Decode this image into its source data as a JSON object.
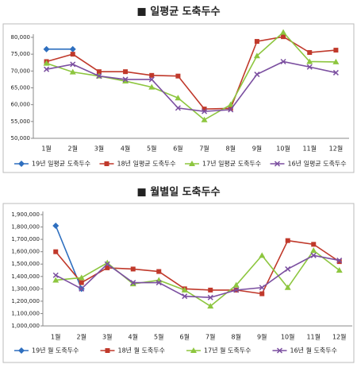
{
  "chart_data": [
    {
      "type": "line",
      "title": "■ 일평균 도축두수",
      "categories": [
        "1월",
        "2월",
        "3월",
        "4월",
        "5월",
        "6월",
        "7월",
        "8월",
        "9월",
        "10월",
        "11월",
        "12월"
      ],
      "ylim": [
        50000,
        80000
      ],
      "yticks": [
        {
          "value": 50000,
          "label": "50,000"
        },
        {
          "value": 55000,
          "label": "55,000"
        },
        {
          "value": 60000,
          "label": "60,000"
        },
        {
          "value": 65000,
          "label": "65,000"
        },
        {
          "value": 70000,
          "label": "70,000"
        },
        {
          "value": 75000,
          "label": "75,000"
        },
        {
          "value": 80000,
          "label": "80,000"
        }
      ],
      "grid": false,
      "legend": "bottom",
      "series": [
        {
          "name": "19년 일평균 도축두수",
          "color": "#2e6fbf",
          "marker": "diamond",
          "values": [
            76500,
            76500,
            null,
            null,
            null,
            null,
            null,
            null,
            null,
            null,
            null,
            null
          ]
        },
        {
          "name": "18년 일평균 도축두수",
          "color": "#c0392b",
          "marker": "square",
          "values": [
            72800,
            75000,
            69800,
            69800,
            68700,
            68500,
            58700,
            58900,
            78800,
            80200,
            75500,
            76200
          ]
        },
        {
          "name": "17년 일평균 도축두수",
          "color": "#8dc63f",
          "marker": "triangle",
          "values": [
            72300,
            69700,
            68500,
            67000,
            65200,
            62000,
            55500,
            60000,
            74500,
            81500,
            72800,
            72700
          ]
        },
        {
          "name": "16년 일평균 도축두수",
          "color": "#7b4fa0",
          "marker": "cross",
          "values": [
            70500,
            72000,
            68500,
            67500,
            67500,
            59000,
            58000,
            58500,
            69000,
            72800,
            71200,
            69500
          ]
        }
      ]
    },
    {
      "type": "line",
      "title": "■ 월별일 도축두수",
      "categories": [
        "1월",
        "2월",
        "3월",
        "4월",
        "5월",
        "6월",
        "7월",
        "8월",
        "9월",
        "10월",
        "11월",
        "12월"
      ],
      "ylim": [
        1000000,
        1900000
      ],
      "yticks": [
        {
          "value": 1000000,
          "label": "1,000,000"
        },
        {
          "value": 1100000,
          "label": "1,100,000"
        },
        {
          "value": 1200000,
          "label": "1,200,000"
        },
        {
          "value": 1300000,
          "label": "1,300,000"
        },
        {
          "value": 1400000,
          "label": "1,400,000"
        },
        {
          "value": 1500000,
          "label": "1,500,000"
        },
        {
          "value": 1600000,
          "label": "1,600,000"
        },
        {
          "value": 1700000,
          "label": "1,700,000"
        },
        {
          "value": 1800000,
          "label": "1,800,000"
        },
        {
          "value": 1900000,
          "label": "1,900,000"
        }
      ],
      "grid": false,
      "legend": "bottom",
      "series": [
        {
          "name": "19년 월 도축두수",
          "color": "#2e6fbf",
          "marker": "diamond",
          "values": [
            1810000,
            1300000,
            null,
            null,
            null,
            null,
            null,
            null,
            null,
            null,
            null,
            null
          ]
        },
        {
          "name": "18년 월 도축두수",
          "color": "#c0392b",
          "marker": "square",
          "values": [
            1600000,
            1350000,
            1470000,
            1460000,
            1440000,
            1300000,
            1290000,
            1290000,
            1260000,
            1690000,
            1660000,
            1520000
          ]
        },
        {
          "name": "17년 월 도축두수",
          "color": "#8dc63f",
          "marker": "triangle",
          "values": [
            1370000,
            1390000,
            1510000,
            1340000,
            1370000,
            1290000,
            1160000,
            1330000,
            1570000,
            1310000,
            1610000,
            1450000
          ]
        },
        {
          "name": "16년 월 도축두수",
          "color": "#7b4fa0",
          "marker": "cross",
          "values": [
            1410000,
            1300000,
            1500000,
            1350000,
            1350000,
            1240000,
            1230000,
            1290000,
            1310000,
            1460000,
            1570000,
            1530000
          ]
        }
      ]
    }
  ]
}
